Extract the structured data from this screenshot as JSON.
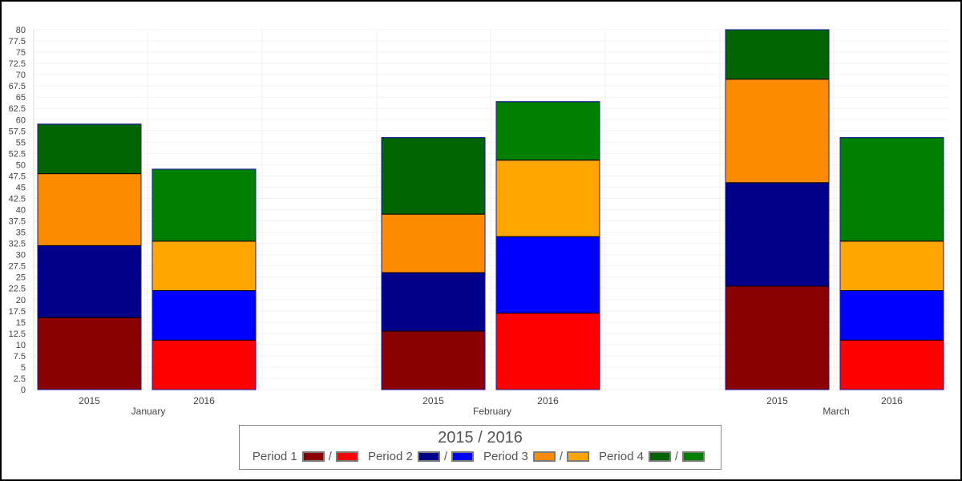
{
  "chart_data": {
    "type": "bar",
    "stacked": true,
    "grouped": true,
    "title": "",
    "xlabel": "",
    "ylabel": "",
    "ylim": [
      0,
      80
    ],
    "ytick_step": 2.5,
    "grid": true,
    "legend_position": "bottom",
    "groups": [
      "January",
      "February",
      "March"
    ],
    "subgroups": [
      "2015",
      "2016"
    ],
    "bars": [
      {
        "group": "January",
        "year": "2015",
        "values": [
          16,
          16,
          16,
          11
        ]
      },
      {
        "group": "January",
        "year": "2016",
        "values": [
          11,
          11,
          11,
          16
        ]
      },
      {
        "group": "February",
        "year": "2015",
        "values": [
          13,
          13,
          13,
          17
        ]
      },
      {
        "group": "February",
        "year": "2016",
        "values": [
          17,
          17,
          17,
          13
        ]
      },
      {
        "group": "March",
        "year": "2015",
        "values": [
          23,
          23,
          23,
          11
        ]
      },
      {
        "group": "March",
        "year": "2016",
        "values": [
          11,
          11,
          11,
          23
        ]
      }
    ],
    "series": [
      {
        "name": "Period 1",
        "color_2015": "#8b0000",
        "color_2016": "#ff0000"
      },
      {
        "name": "Period 2",
        "color_2015": "#00008b",
        "color_2016": "#0000ff"
      },
      {
        "name": "Period 3",
        "color_2015": "#ff8c00",
        "color_2016": "#ffa500"
      },
      {
        "name": "Period 4",
        "color_2015": "#006400",
        "color_2016": "#008000"
      }
    ],
    "legend": {
      "title": "2015 / 2016",
      "separator": "/"
    }
  }
}
